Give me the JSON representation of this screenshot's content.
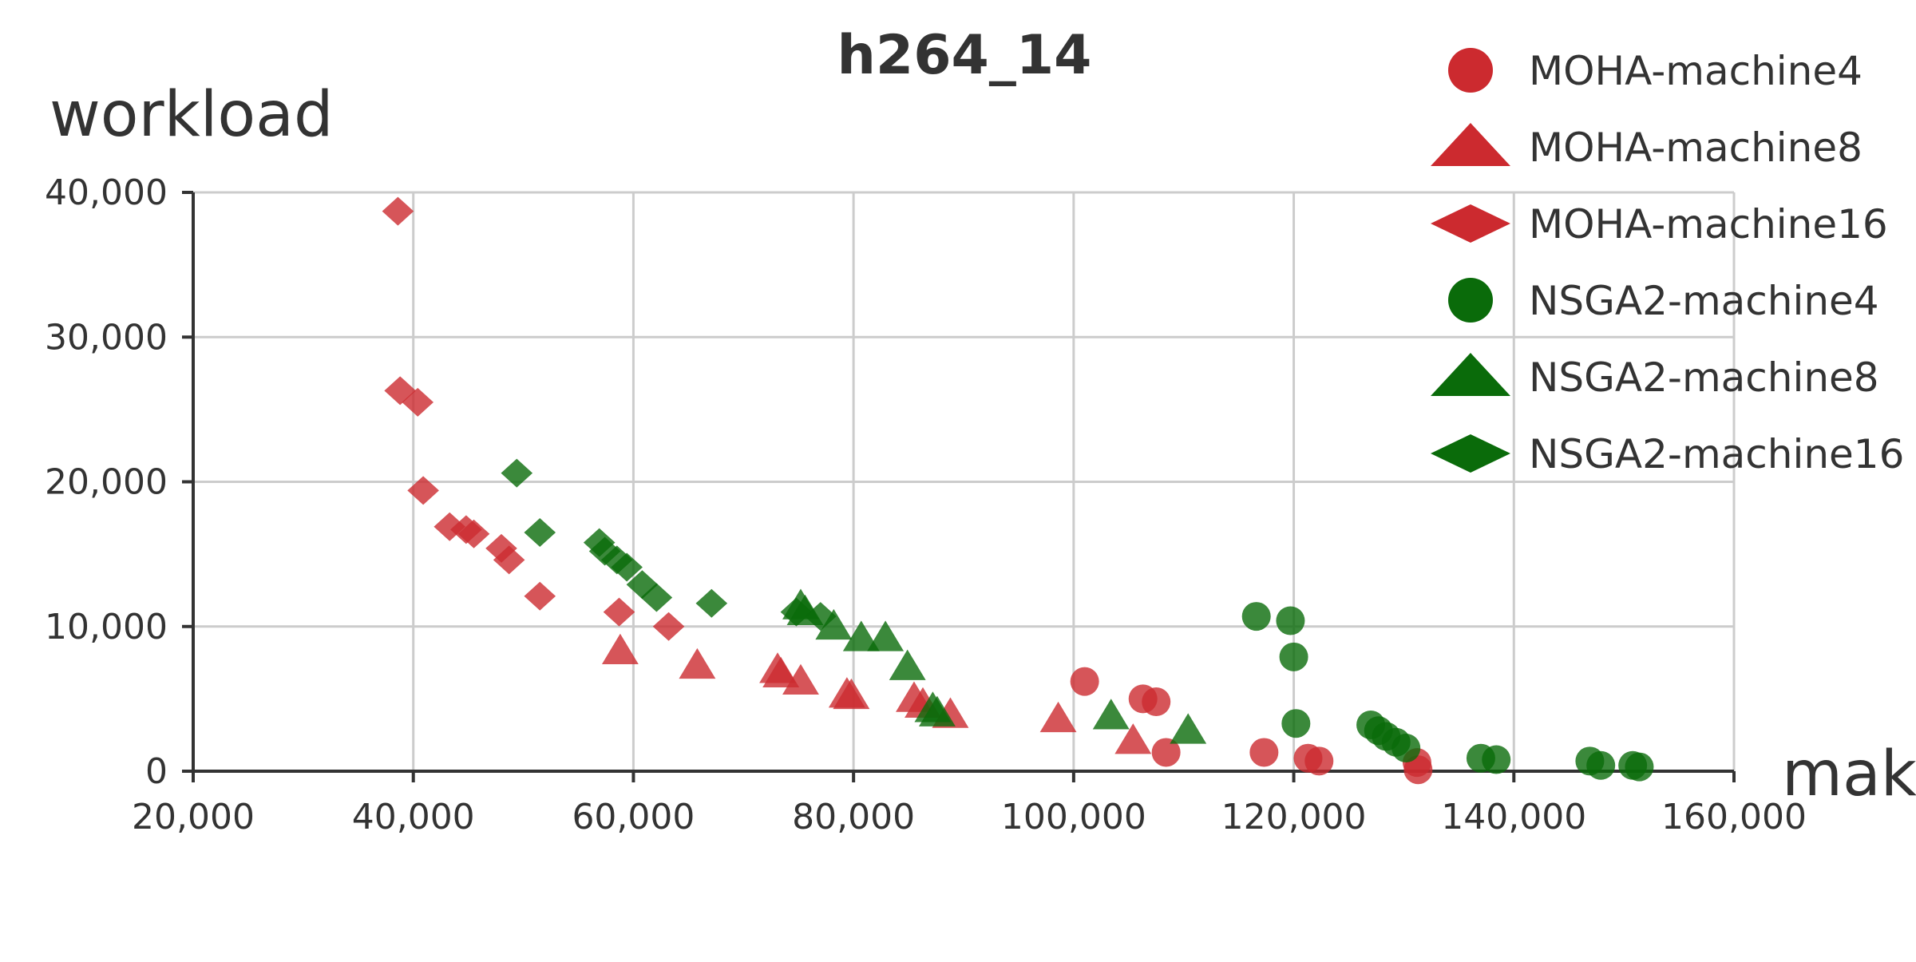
{
  "chart_data": {
    "type": "scatter",
    "title": "h264_14",
    "xlabel": "makespan",
    "ylabel": "workload",
    "xlim": [
      20000,
      160000
    ],
    "ylim": [
      0,
      40000
    ],
    "x_ticks": [
      20000,
      40000,
      60000,
      80000,
      100000,
      120000,
      140000,
      160000
    ],
    "y_ticks": [
      0,
      10000,
      20000,
      30000,
      40000
    ],
    "x_tick_labels": [
      "20,000",
      "40,000",
      "60,000",
      "80,000",
      "100,000",
      "120,000",
      "140,000",
      "160,000"
    ],
    "y_tick_labels": [
      "0",
      "10,000",
      "20,000",
      "30,000",
      "40,000"
    ],
    "grid": true,
    "legend_position": "top-right",
    "series": [
      {
        "name": "MOHA-machine4",
        "marker": "circle",
        "color": "#cc2a2f",
        "points": [
          [
            101000,
            6200
          ],
          [
            106300,
            5000
          ],
          [
            107500,
            4800
          ],
          [
            108400,
            1300
          ],
          [
            117300,
            1300
          ],
          [
            121300,
            900
          ],
          [
            122300,
            700
          ],
          [
            131200,
            600
          ],
          [
            131300,
            100
          ]
        ]
      },
      {
        "name": "MOHA-machine8",
        "marker": "triangle",
        "color": "#cc2a2f",
        "points": [
          [
            58800,
            8300
          ],
          [
            65800,
            7300
          ],
          [
            73100,
            7000
          ],
          [
            73400,
            6700
          ],
          [
            75200,
            6200
          ],
          [
            79400,
            5300
          ],
          [
            79800,
            5200
          ],
          [
            85500,
            5000
          ],
          [
            86300,
            4600
          ],
          [
            88800,
            3900
          ],
          [
            98600,
            3600
          ],
          [
            105400,
            2100
          ]
        ]
      },
      {
        "name": "MOHA-machine16",
        "marker": "diamond",
        "color": "#cc2a2f",
        "points": [
          [
            38600,
            38700
          ],
          [
            38800,
            26300
          ],
          [
            40400,
            25500
          ],
          [
            40900,
            19400
          ],
          [
            43300,
            16900
          ],
          [
            44800,
            16700
          ],
          [
            45500,
            16400
          ],
          [
            48000,
            15400
          ],
          [
            48700,
            14600
          ],
          [
            51500,
            12100
          ],
          [
            58700,
            11000
          ],
          [
            63200,
            10000
          ]
        ]
      },
      {
        "name": "NSGA2-machine4",
        "marker": "circle",
        "color": "#0a6b0a",
        "points": [
          [
            116600,
            10700
          ],
          [
            119700,
            10400
          ],
          [
            120000,
            7900
          ],
          [
            120200,
            3300
          ],
          [
            127000,
            3200
          ],
          [
            127700,
            2800
          ],
          [
            128400,
            2400
          ],
          [
            129300,
            2000
          ],
          [
            130200,
            1600
          ],
          [
            137000,
            900
          ],
          [
            138400,
            800
          ],
          [
            146900,
            700
          ],
          [
            147900,
            400
          ],
          [
            150800,
            400
          ],
          [
            151400,
            300
          ]
        ]
      },
      {
        "name": "NSGA2-machine8",
        "marker": "triangle",
        "color": "#0a6b0a",
        "points": [
          [
            75200,
            11400
          ],
          [
            75600,
            11000
          ],
          [
            78200,
            10000
          ],
          [
            80700,
            9200
          ],
          [
            82900,
            9200
          ],
          [
            84900,
            7200
          ],
          [
            87200,
            4300
          ],
          [
            87600,
            4000
          ],
          [
            103400,
            3800
          ],
          [
            110400,
            2800
          ]
        ]
      },
      {
        "name": "NSGA2-machine16",
        "marker": "diamond",
        "color": "#0a6b0a",
        "points": [
          [
            49400,
            20600
          ],
          [
            51500,
            16500
          ],
          [
            56900,
            15800
          ],
          [
            57400,
            15200
          ],
          [
            58500,
            14600
          ],
          [
            59400,
            14100
          ],
          [
            60800,
            12900
          ],
          [
            62100,
            12000
          ],
          [
            67100,
            11600
          ],
          [
            74800,
            11000
          ],
          [
            77000,
            10700
          ]
        ]
      }
    ]
  }
}
